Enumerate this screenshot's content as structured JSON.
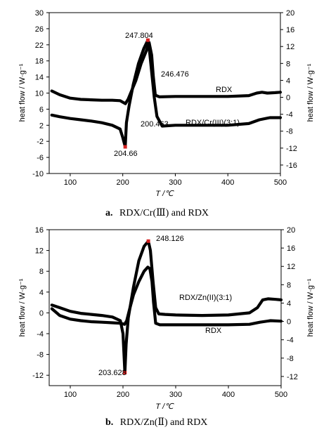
{
  "captions": {
    "a_label": "a.",
    "a_text": "RDX/Cr(Ⅲ) and RDX",
    "b_label": "b.",
    "b_text": "RDX/Zn(Ⅱ) and RDX"
  },
  "chart_data": [
    {
      "type": "line",
      "id": "a",
      "title": "",
      "xlabel": "T /℃",
      "ylabel_left": "heat flow / W·g⁻¹",
      "ylabel_right": "heat flow / W·g⁻¹",
      "xlim": [
        60,
        500
      ],
      "ylim_left": [
        -10,
        30
      ],
      "ylim_right": [
        -18,
        20
      ],
      "xticks": [
        "100",
        "200",
        "300",
        "400",
        "500"
      ],
      "yticks_left": [
        "30",
        "26",
        "22",
        "18",
        "14",
        "10",
        "6",
        "2",
        "-2",
        "-6",
        "-10"
      ],
      "yticks_right": [
        "20",
        "16",
        "12",
        "8",
        "4",
        "0",
        "-4",
        "-8",
        "-12",
        "-16"
      ],
      "series": [
        {
          "name": "RDX",
          "axis": "right",
          "x": [
            65,
            80,
            100,
            120,
            140,
            160,
            180,
            195,
            205,
            210,
            215,
            225,
            235,
            245,
            250,
            255,
            258,
            262,
            270,
            300,
            350,
            400,
            440,
            455,
            465,
            475,
            490,
            500
          ],
          "y": [
            1.5,
            0.6,
            -0.2,
            -0.5,
            -0.6,
            -0.7,
            -0.7,
            -0.8,
            -1.5,
            -0.5,
            1.0,
            4.0,
            8.0,
            11.0,
            13.0,
            10.0,
            5.0,
            0.5,
            0.1,
            0.2,
            0.2,
            0.2,
            0.4,
            1.0,
            1.2,
            1.0,
            1.1,
            1.2
          ]
        },
        {
          "name": "RDX/Cr(III)(3:1)",
          "axis": "right",
          "x": [
            65,
            80,
            100,
            120,
            140,
            160,
            180,
            195,
            200,
            204.66,
            207,
            212,
            220,
            230,
            240,
            247.804,
            250,
            255,
            260,
            265,
            275,
            300,
            350,
            400,
            440,
            460,
            480,
            500
          ],
          "y": [
            -4.2,
            -4.6,
            -5.0,
            -5.3,
            -5.6,
            -6.0,
            -6.6,
            -7.5,
            -9.5,
            -11.7,
            -6.0,
            -2.0,
            3.0,
            8.0,
            11.5,
            13.5,
            12.0,
            6.0,
            0.0,
            -4.5,
            -6.8,
            -6.6,
            -6.6,
            -6.6,
            -6.2,
            -5.3,
            -4.8,
            -4.8
          ]
        }
      ],
      "annotations": [
        "247.804",
        "246.476",
        "200.463",
        "204.66"
      ],
      "legend_labels": [
        "RDX",
        "RDX/Cr(III)(3:1)"
      ]
    },
    {
      "type": "line",
      "id": "b",
      "title": "",
      "xlabel": "T /℃",
      "ylabel_left": "heat flow / W·g⁻¹",
      "ylabel_right": "heat flow / W·g⁻¹",
      "xlim": [
        60,
        500
      ],
      "ylim_left": [
        -14,
        16
      ],
      "ylim_right": [
        -14,
        20
      ],
      "xticks": [
        "100",
        "200",
        "300",
        "400",
        "500"
      ],
      "yticks_left": [
        "16",
        "12",
        "8",
        "4",
        "0",
        "-4",
        "-8",
        "-12"
      ],
      "yticks_right": [
        "20",
        "16",
        "12",
        "8",
        "4",
        "0",
        "-4",
        "-8",
        "-12"
      ],
      "series": [
        {
          "name": "RDX/Zn(II)(3:1)",
          "axis": "left",
          "x": [
            65,
            80,
            100,
            120,
            140,
            160,
            180,
            195,
            200,
            203.628,
            206,
            210,
            220,
            230,
            240,
            248.126,
            252,
            257,
            262,
            268,
            280,
            300,
            350,
            400,
            440,
            455,
            465,
            475,
            490,
            500
          ],
          "y": [
            1.5,
            1.0,
            0.3,
            -0.1,
            -0.3,
            -0.5,
            -0.8,
            -1.5,
            -4.0,
            -11.5,
            -6.0,
            -1.0,
            5.0,
            10.0,
            12.8,
            13.8,
            12.0,
            6.0,
            1.0,
            -0.2,
            -0.3,
            -0.4,
            -0.5,
            -0.4,
            0.0,
            1.0,
            2.5,
            2.7,
            2.6,
            2.5
          ]
        },
        {
          "name": "RDX",
          "axis": "left",
          "x": [
            65,
            80,
            100,
            120,
            140,
            160,
            180,
            195,
            203,
            207,
            212,
            220,
            230,
            240,
            247,
            251,
            255,
            258,
            262,
            270,
            300,
            350,
            400,
            440,
            460,
            480,
            500
          ],
          "y": [
            0.8,
            -0.5,
            -1.2,
            -1.5,
            -1.7,
            -1.8,
            -1.9,
            -2.0,
            -2.2,
            -1.5,
            0.5,
            3.5,
            6.0,
            8.0,
            8.8,
            8.5,
            6.0,
            2.0,
            -2.0,
            -2.3,
            -2.3,
            -2.3,
            -2.3,
            -2.2,
            -1.8,
            -1.5,
            -1.6
          ]
        }
      ],
      "annotations": [
        "248.126",
        "203.628"
      ],
      "legend_labels": [
        "RDX/Zn(II)(3:1)",
        "RDX"
      ]
    }
  ]
}
